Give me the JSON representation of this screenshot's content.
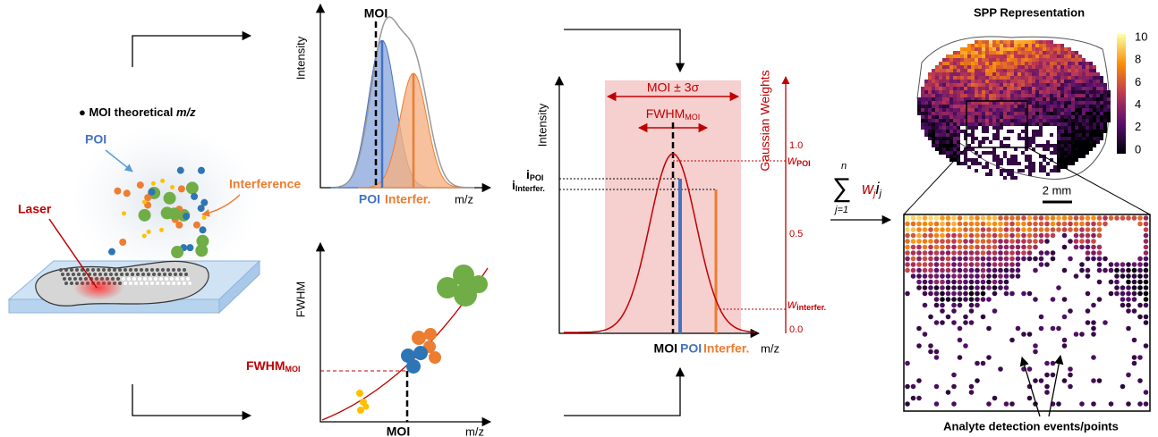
{
  "left": {
    "moi_note": {
      "main": "MOI theoretical ",
      "italic": "m/z"
    },
    "poi": "POI",
    "interference": "Interference",
    "laser": "Laser"
  },
  "spectrum_panel": {
    "moi": "MOI",
    "y_label": "Intensity",
    "poi": "POI",
    "interfer": "Interfer.",
    "x_label": "m/z"
  },
  "fwhm_panel": {
    "y_label": "FWHM",
    "fwhm_moi": {
      "main": "FWHM",
      "sub": "MOI"
    },
    "moi": "MOI",
    "x_label": "m/z"
  },
  "weight_panel": {
    "window": "MOI ± 3σ",
    "fwhm_moi": {
      "main": "FWHM",
      "sub": "MOI"
    },
    "y_label": "Intensity",
    "y2_label": "Gaussian Weights",
    "y2_ticks": [
      "1.0",
      "0.5",
      "0.0"
    ],
    "i_poi": {
      "main": "i",
      "sub": "POI"
    },
    "i_interfer": {
      "main": "i",
      "sub": "Interfer."
    },
    "w_poi": {
      "main": "w",
      "sub": "POI"
    },
    "w_interfer": {
      "main": "w",
      "sub": "interfer."
    },
    "moi": "MOI",
    "poi": "POI",
    "interfer": "Interfer.",
    "x_label": "m/z"
  },
  "formula": {
    "sum": "∑",
    "upper": "n",
    "lower": "j=1",
    "w": "w",
    "w_sub": "j",
    "i": "i",
    "i_sub": "j"
  },
  "spp": {
    "title": "SPP Representation",
    "colorbar_ticks": [
      "10",
      "8",
      "6",
      "4",
      "2",
      "0"
    ],
    "scale_bar": "2 mm",
    "annotation": "Analyte detection events/points"
  }
}
